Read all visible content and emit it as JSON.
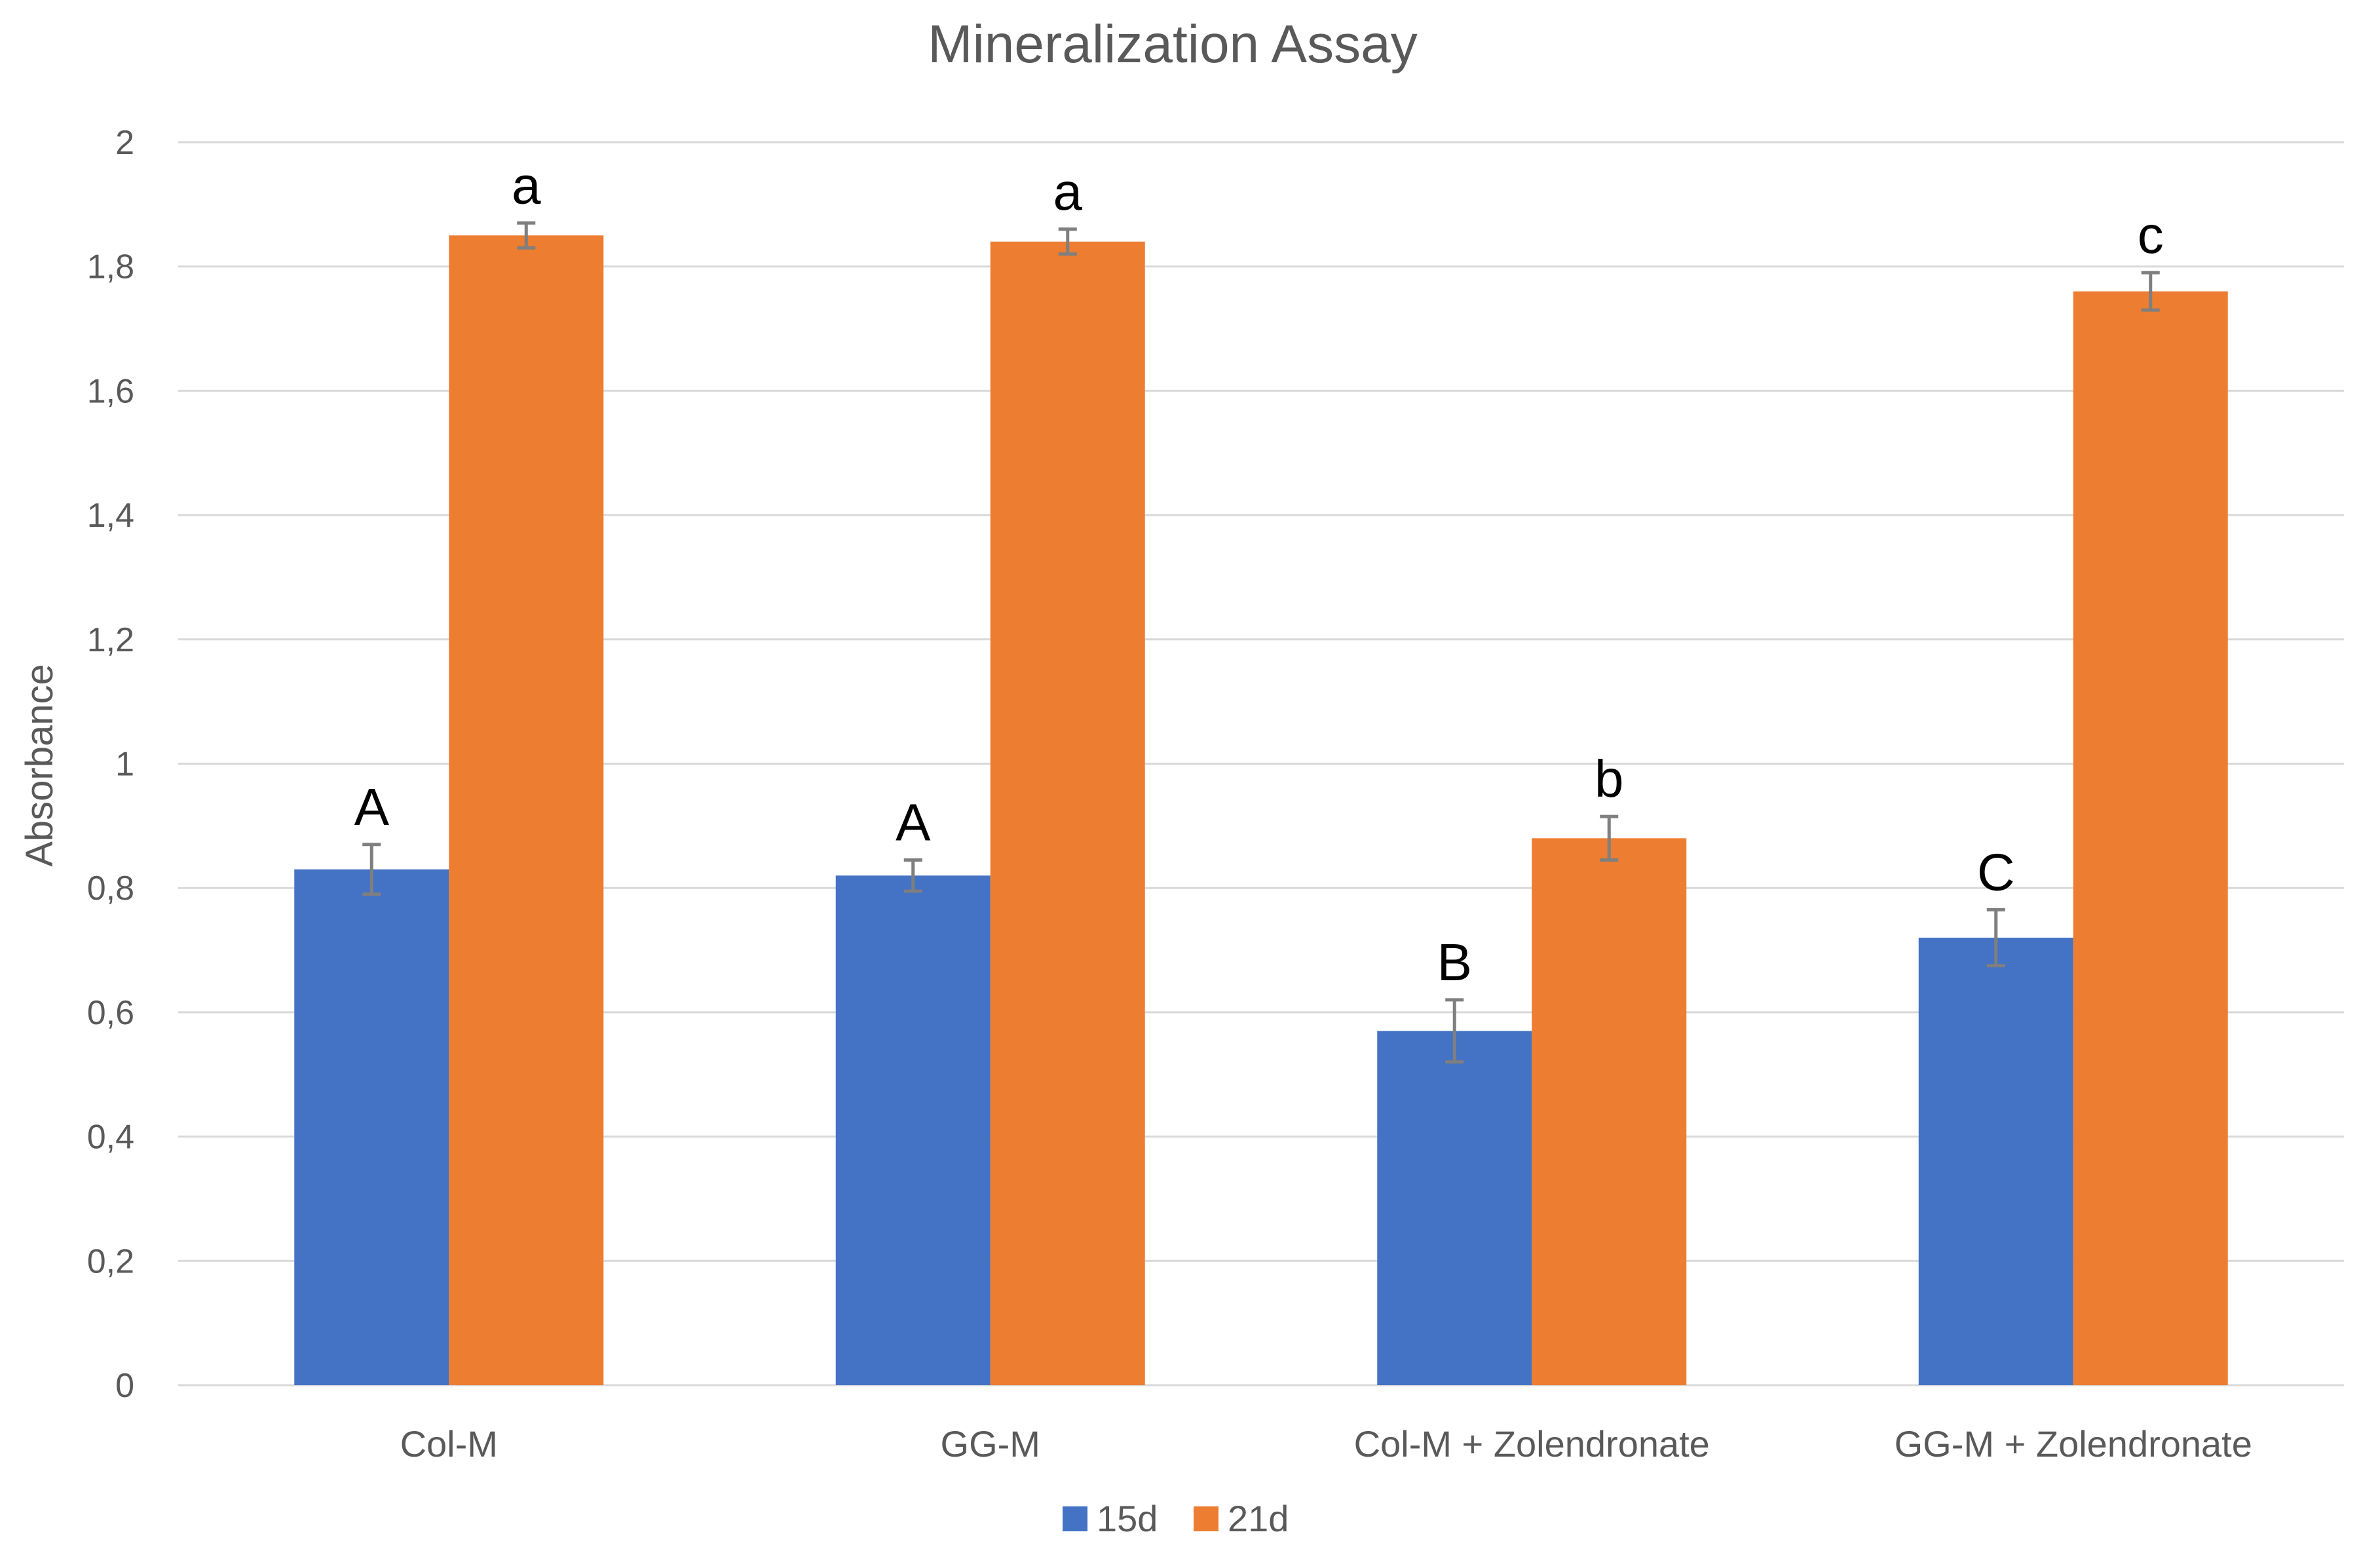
{
  "chart_data": {
    "type": "bar",
    "title": "Mineralization Assay",
    "xlabel": "",
    "ylabel": "Absorbance",
    "ylim": [
      0,
      2
    ],
    "yticks": [
      0,
      0.2,
      0.4,
      0.6,
      0.8,
      1,
      1.2,
      1.4,
      1.6,
      1.8,
      2
    ],
    "ytick_labels": [
      "0",
      "0,2",
      "0,4",
      "0,6",
      "0,8",
      "1",
      "1,2",
      "1,4",
      "1,6",
      "1,8",
      "2"
    ],
    "grid": true,
    "legend_position": "bottom",
    "categories": [
      "Col-M",
      "GG-M",
      "Col-M + Zolendronate",
      "GG-M + Zolendronate"
    ],
    "series": [
      {
        "name": "15d",
        "color": "#4472C4",
        "values": [
          0.83,
          0.82,
          0.57,
          0.72
        ],
        "errors": [
          0.04,
          0.025,
          0.05,
          0.045
        ],
        "annotations": [
          "A",
          "A",
          "B",
          "C"
        ]
      },
      {
        "name": "21d",
        "color": "#ED7D31",
        "values": [
          1.85,
          1.84,
          0.88,
          1.76
        ],
        "errors": [
          0.02,
          0.02,
          0.035,
          0.03
        ],
        "annotations": [
          "a",
          "a",
          "b",
          "c"
        ]
      }
    ],
    "colors": {
      "gridline": "#D9D9D9",
      "axis_text": "#595959",
      "title_text": "#595959",
      "error_bar": "#7F7F7F",
      "annotation_text": "#000000"
    }
  }
}
